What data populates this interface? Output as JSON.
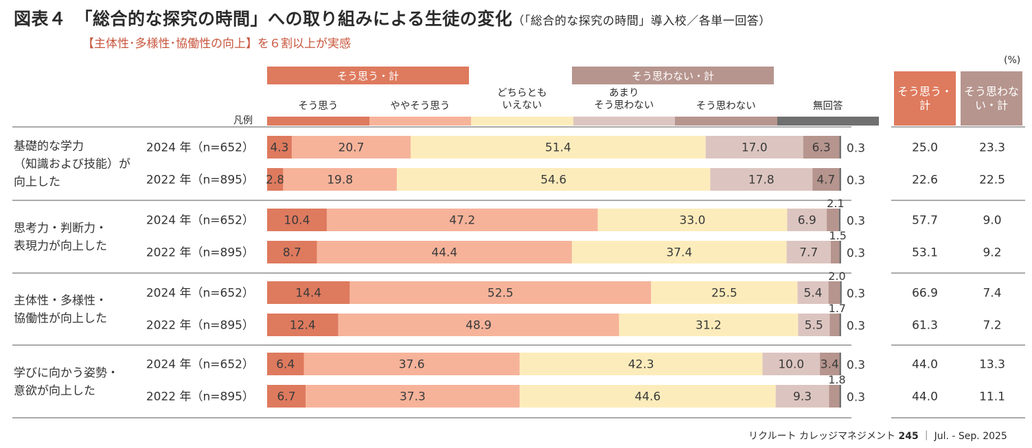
{
  "title": "図表４　「総合的な探究の時間」への取り組みによる生徒の変化",
  "title_note": "（「総合的な探究の時間」導入校／各単一回答）",
  "subtitle": "【主体性･多様性･協働性の向上】を６割以上が実感",
  "unit": "(%)",
  "legend_key": "凡例",
  "group_labels": {
    "agree_total": "そう思う・計",
    "disagree_total": "そう思わない・計"
  },
  "total_headers": {
    "agree": "そう思う・計",
    "disagree": "そう思わない・計"
  },
  "footer": {
    "text": "リクルート カレッジマネジメント",
    "page": "245",
    "issue": "｜ Jul. - Sep. 2025"
  },
  "colors": {
    "strongly_agree": "#de7a5e",
    "somewhat_agree": "#f6b39a",
    "neutral": "#fdecbb",
    "somewhat_disagree": "#dcc5c0",
    "strongly_disagree": "#b6958e",
    "no_answer": "#707070",
    "agree_total_box": "#de7a5e",
    "disagree_total_box": "#b6958e",
    "subtitle": "#c8553c"
  },
  "chart_data": {
    "type": "bar",
    "orientation": "horizontal",
    "stacked": true,
    "xlim": [
      0,
      100
    ],
    "series_names": [
      "そう思う",
      "ややそう思う",
      "どちらとも\nいえない",
      "あまり\nそう思わない",
      "そう思わない",
      "無回答"
    ],
    "items": [
      {
        "label": [
          "基礎的な学力",
          "（知識および技能）が",
          "向上した"
        ],
        "rows": [
          {
            "year": "2024 年（n=652）",
            "values": [
              4.3,
              20.7,
              51.4,
              17.0,
              6.3,
              0.3
            ],
            "agree_total": "25.0",
            "disagree_total": "23.3"
          },
          {
            "year": "2022 年（n=895）",
            "values": [
              2.8,
              19.8,
              54.6,
              17.8,
              4.7,
              0.3
            ],
            "agree_total": "22.6",
            "disagree_total": "22.5"
          }
        ]
      },
      {
        "label": [
          "思考力・判断力・",
          "表現力が向上した"
        ],
        "rows": [
          {
            "year": "2024 年（n=652）",
            "values": [
              10.4,
              47.2,
              33.0,
              6.9,
              2.1,
              0.3
            ],
            "agree_total": "57.7",
            "disagree_total": "9.0"
          },
          {
            "year": "2022 年（n=895）",
            "values": [
              8.7,
              44.4,
              37.4,
              7.7,
              1.5,
              0.3
            ],
            "agree_total": "53.1",
            "disagree_total": "9.2"
          }
        ]
      },
      {
        "label": [
          "主体性・多様性・",
          "協働性が向上した"
        ],
        "rows": [
          {
            "year": "2024 年（n=652）",
            "values": [
              14.4,
              52.5,
              25.5,
              5.4,
              2.0,
              0.3
            ],
            "agree_total": "66.9",
            "disagree_total": "7.4"
          },
          {
            "year": "2022 年（n=895）",
            "values": [
              12.4,
              48.9,
              31.2,
              5.5,
              1.7,
              0.3
            ],
            "agree_total": "61.3",
            "disagree_total": "7.2"
          }
        ]
      },
      {
        "label": [
          "学びに向かう姿勢・",
          "意欲が向上した"
        ],
        "rows": [
          {
            "year": "2024 年（n=652）",
            "values": [
              6.4,
              37.6,
              42.3,
              10.0,
              3.4,
              0.3
            ],
            "agree_total": "44.0",
            "disagree_total": "13.3"
          },
          {
            "year": "2022 年（n=895）",
            "values": [
              6.7,
              37.3,
              44.6,
              9.3,
              1.8,
              0.3
            ],
            "agree_total": "44.0",
            "disagree_total": "11.1"
          }
        ]
      }
    ]
  }
}
